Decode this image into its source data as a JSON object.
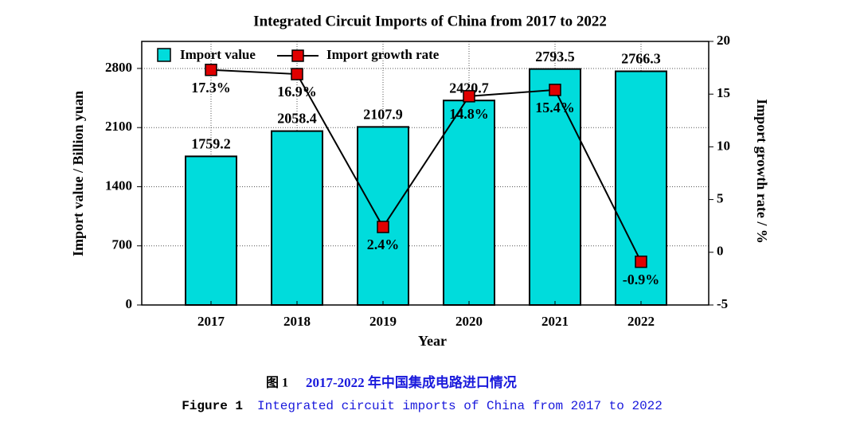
{
  "chart_data": {
    "type": "bar",
    "title": "Integrated Circuit Imports of China from 2017 to 2022",
    "x_label": "Year",
    "y_label": "Import value / Billion yuan",
    "y2_label": "Import growth rate / %",
    "categories": [
      "2017",
      "2018",
      "2019",
      "2020",
      "2021",
      "2022"
    ],
    "series": [
      {
        "name": "Import value",
        "type": "bar",
        "color": "#00dcdc",
        "values": [
          1759.2,
          2058.4,
          2107.9,
          2420.7,
          2793.5,
          2766.3
        ]
      },
      {
        "name": "Import growth rate",
        "type": "line",
        "axis": "y2",
        "color": "#e00000",
        "values": [
          17.3,
          16.9,
          2.4,
          14.8,
          15.4,
          -0.9
        ],
        "value_labels": [
          "17.3%",
          "16.9%",
          "2.4%",
          "14.8%",
          "15.4%",
          "-0.9%"
        ]
      }
    ],
    "ylim": [
      0,
      3120
    ],
    "yticks": [
      0,
      700,
      1400,
      2100,
      2800
    ],
    "y2lim": [
      -5,
      20
    ],
    "y2ticks": [
      -5,
      0,
      5,
      10,
      15,
      20
    ],
    "grid": true,
    "legend": "upper left"
  },
  "caption": {
    "cn_label": "图 1",
    "cn_text": "2017-2022 年中国集成电路进口情况",
    "en_label": "Figure 1",
    "en_text": "Integrated circuit imports of China from 2017 to 2022"
  }
}
